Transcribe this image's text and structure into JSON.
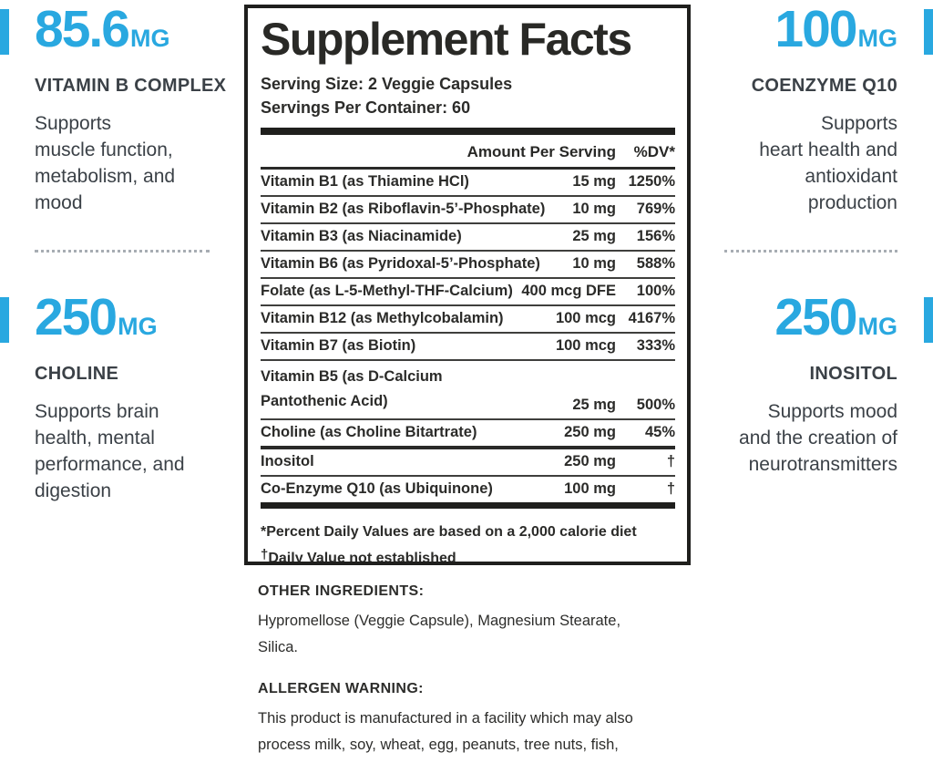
{
  "colors": {
    "accent_blue": "#29a8e0",
    "ink": "#282826"
  },
  "left_column": {
    "blocks": [
      {
        "amount": "85.6",
        "unit": "MG",
        "name": "VITAMIN B COMPLEX",
        "description": "Supports\nmuscle function,\nmetabolism, and\nmood"
      },
      {
        "amount": "250",
        "unit": "MG",
        "name": "CHOLINE",
        "description": "Supports brain\nhealth, mental\nperformance, and\ndigestion"
      }
    ]
  },
  "right_column": {
    "blocks": [
      {
        "amount": "100",
        "unit": "MG",
        "name": "COENZYME Q10",
        "description": "Supports\nheart health and\nantioxidant\nproduction"
      },
      {
        "amount": "250",
        "unit": "MG",
        "name": "INOSITOL",
        "description": "Supports mood\nand the creation of\nneurotransmitters"
      }
    ]
  },
  "panel": {
    "title": "Supplement Facts",
    "serving_size": "Serving Size: 2 Veggie Capsules",
    "servings_per_container": "Servings Per Container: 60",
    "columns": {
      "amount": "Amount Per Serving",
      "dv": "%DV*"
    },
    "rows": [
      {
        "name": "Vitamin B1 (as Thiamine HCl)",
        "amount": "15 mg",
        "dv": "1250%"
      },
      {
        "name": "Vitamin B2 (as Riboflavin-5’-Phosphate)",
        "amount": "10 mg",
        "dv": "769%"
      },
      {
        "name": "Vitamin B3 (as Niacinamide)",
        "amount": "25 mg",
        "dv": "156%"
      },
      {
        "name": "Vitamin B6 (as Pyridoxal-5’-Phosphate)",
        "amount": "10 mg",
        "dv": "588%"
      },
      {
        "name": "Folate (as L-5-Methyl-THF-Calcium)",
        "amount": "400 mcg DFE",
        "dv": "100%"
      },
      {
        "name": "Vitamin B12 (as Methylcobalamin)",
        "amount": "100 mcg",
        "dv": "4167%"
      },
      {
        "name": "Vitamin B7 (as Biotin)",
        "amount": "100 mcg",
        "dv": "333%"
      },
      {
        "name": "Vitamin B5 (as D-Calcium\nPantothenic Acid)",
        "amount": "25 mg",
        "dv": "500%"
      },
      {
        "name": "Choline (as Choline Bitartrate)",
        "amount": "250 mg",
        "dv": "45%"
      },
      {
        "name": "Inositol",
        "amount": "250 mg",
        "dv": "†",
        "section_break": true
      },
      {
        "name": "Co-Enzyme Q10 (as Ubiquinone)",
        "amount": "100 mg",
        "dv": "†"
      }
    ],
    "footnote_dv": "*Percent Daily Values are based on a 2,000 calorie diet",
    "footnote_dagger_symbol": "†",
    "footnote_dagger_text": "Daily Value not established"
  },
  "other_ingredients": {
    "heading": "OTHER INGREDIENTS:",
    "text": "Hypromellose (Veggie Capsule), Magnesium Stearate,\nSilica."
  },
  "allergen_warning": {
    "heading": "ALLERGEN WARNING:",
    "text": "This product is manufactured in a facility which may also\nprocess milk, soy, wheat, egg, peanuts, tree nuts, fish,\nand shellfish."
  }
}
